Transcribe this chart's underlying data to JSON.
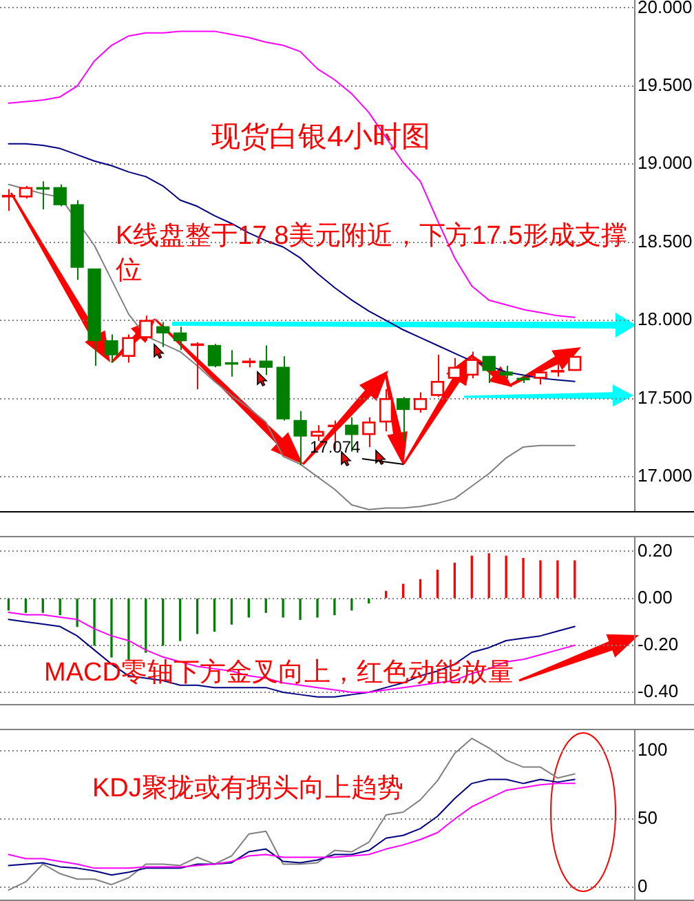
{
  "chart_data": [
    {
      "type": "candlestick",
      "title": "现货白银4小时图",
      "categories": [
        null,
        null,
        null,
        null,
        null,
        null,
        null,
        null,
        null,
        null,
        null,
        null,
        null,
        null,
        null,
        null,
        null,
        null,
        null,
        null,
        null,
        null,
        null,
        null,
        null,
        null,
        null,
        null,
        null,
        null,
        null,
        null,
        null,
        null,
        null,
        null,
        null
      ],
      "ohlc": [
        [
          18.79,
          18.84,
          18.7,
          18.8
        ],
        [
          18.79,
          18.86,
          18.78,
          18.85
        ],
        [
          18.85,
          18.89,
          18.71,
          18.84
        ],
        [
          18.85,
          18.87,
          18.73,
          18.74
        ],
        [
          18.74,
          18.77,
          18.26,
          18.34
        ],
        [
          18.33,
          18.33,
          17.71,
          17.87
        ],
        [
          17.87,
          17.91,
          17.73,
          17.78
        ],
        [
          17.77,
          17.91,
          17.73,
          17.89
        ],
        [
          17.89,
          18.03,
          17.87,
          18.0
        ],
        [
          17.96,
          17.99,
          17.83,
          17.92
        ],
        [
          17.92,
          17.96,
          17.81,
          17.87
        ],
        [
          17.84,
          17.86,
          17.56,
          17.85
        ],
        [
          17.84,
          17.85,
          17.7,
          17.71
        ],
        [
          17.73,
          17.81,
          17.64,
          17.72
        ],
        [
          17.73,
          17.76,
          17.7,
          17.74
        ],
        [
          17.74,
          17.84,
          17.65,
          17.7
        ],
        [
          17.7,
          17.77,
          17.36,
          17.37
        ],
        [
          17.36,
          17.42,
          17.074,
          17.26
        ],
        [
          17.26,
          17.33,
          17.23,
          17.29
        ],
        [
          17.32,
          17.36,
          17.17,
          17.33
        ],
        [
          17.33,
          17.38,
          17.16,
          17.27
        ],
        [
          17.27,
          17.38,
          17.19,
          17.35
        ],
        [
          17.35,
          17.56,
          17.29,
          17.5
        ],
        [
          17.5,
          17.51,
          17.23,
          17.43
        ],
        [
          17.43,
          17.54,
          17.41,
          17.5
        ],
        [
          17.52,
          17.78,
          17.51,
          17.61
        ],
        [
          17.63,
          17.76,
          17.57,
          17.7
        ],
        [
          17.65,
          17.8,
          17.63,
          17.75
        ],
        [
          17.77,
          17.77,
          17.6,
          17.68
        ],
        [
          17.67,
          17.71,
          17.63,
          17.65
        ],
        [
          17.63,
          17.65,
          17.6,
          17.62
        ],
        [
          17.63,
          17.69,
          17.59,
          17.67
        ],
        [
          17.67,
          17.72,
          17.64,
          17.68
        ],
        [
          17.68,
          17.77,
          17.68,
          17.77
        ],
        null,
        null,
        null
      ],
      "colors": [
        "#ff0000",
        "#ff0000",
        "#008000",
        "#008000",
        "#008000",
        "#008000",
        "#008000",
        "#ff0000",
        "#ff0000",
        "#008000",
        "#008000",
        "#ff0000",
        "#008000",
        "#008000",
        "#ff0000",
        "#008000",
        "#008000",
        "#008000",
        "#ff0000",
        "#ff0000",
        "#008000",
        "#ff0000",
        "#ff0000",
        "#008000",
        "#ff0000",
        "#ff0000",
        "#ff0000",
        "#ff0000",
        "#008000",
        "#008000",
        "#008000",
        "#ff0000",
        "#ff0000",
        "#ff0000",
        null,
        null,
        null
      ],
      "series": [
        {
          "type": "line",
          "color": "#ff00ff",
          "values": [
            19.39,
            19.4,
            19.41,
            19.43,
            19.5,
            19.66,
            19.76,
            19.82,
            19.84,
            19.84,
            19.85,
            19.85,
            19.85,
            19.83,
            19.81,
            19.78,
            19.76,
            19.72,
            19.61,
            19.54,
            19.45,
            19.33,
            19.17,
            19.01,
            18.89,
            18.64,
            18.4,
            18.22,
            18.13,
            18.1,
            18.07,
            18.05,
            18.03,
            18.02,
            null,
            null,
            null
          ]
        },
        {
          "type": "line",
          "color": "#000080",
          "values": [
            19.13,
            19.13,
            19.12,
            19.1,
            19.06,
            19.02,
            18.99,
            18.95,
            18.92,
            18.86,
            18.77,
            18.73,
            18.67,
            18.62,
            18.56,
            18.51,
            18.47,
            18.4,
            18.3,
            18.21,
            18.13,
            18.06,
            18.0,
            17.94,
            17.89,
            17.84,
            17.79,
            17.74,
            17.71,
            17.67,
            17.65,
            17.63,
            17.62,
            17.61,
            null,
            null,
            null
          ]
        },
        {
          "type": "line",
          "color": "#808080",
          "values": [
            18.87,
            18.84,
            18.81,
            18.79,
            null,
            18.48,
            18.26,
            18.04,
            17.9,
            17.85,
            17.8,
            17.71,
            17.61,
            17.52,
            17.44,
            17.35,
            17.13,
            17.08,
            17.0,
            16.92,
            16.82,
            16.79,
            16.8,
            16.8,
            16.81,
            16.83,
            16.86,
            16.94,
            17.02,
            17.12,
            17.19,
            17.2,
            17.2,
            17.2,
            null,
            null,
            null
          ]
        }
      ],
      "ylim": [
        16.78,
        20.05
      ],
      "yticks": [
        {
          "value": 17,
          "label": "17.000"
        },
        {
          "value": 17.5,
          "label": "17.500"
        },
        {
          "value": 18,
          "label": "18.000"
        },
        {
          "value": 18.5,
          "label": "18.500"
        },
        {
          "value": 19,
          "label": "19.000"
        },
        {
          "value": 19.5,
          "label": "19.500"
        },
        {
          "value": 20,
          "label": "20.000"
        }
      ],
      "grid": "y",
      "tick_labels": "y",
      "annotations": [
        "K线盘整于17.8美元附近，下方17.5形成支撑位",
        "17.074"
      ]
    },
    {
      "type": "bar",
      "categories": [
        null,
        null,
        null,
        null,
        null,
        null,
        null,
        null,
        null,
        null,
        null,
        null,
        null,
        null,
        null,
        null,
        null,
        null,
        null,
        null,
        null,
        null,
        null,
        null,
        null,
        null,
        null,
        null,
        null,
        null,
        null,
        null,
        null,
        null,
        null,
        null,
        null
      ],
      "series": [
        {
          "type": "bar",
          "colors": [
            "#008000",
            "#008000",
            "#008000",
            "#008000",
            "#008000",
            "#008000",
            "#008000",
            "#008000",
            "#008000",
            "#008000",
            "#008000",
            "#008000",
            "#008000",
            "#008000",
            "#008000",
            "#008000",
            "#008000",
            "#008000",
            "#008000",
            "#008000",
            "#008000",
            "#008000",
            "#ff0000",
            "#ff0000",
            "#ff0000",
            "#ff0000",
            "#ff0000",
            "#ff0000",
            "#ff0000",
            "#ff0000",
            "#ff0000",
            "#ff0000",
            "#ff0000",
            "#ff0000",
            null,
            null,
            null
          ],
          "values": [
            -0.05,
            -0.06,
            -0.06,
            -0.07,
            -0.12,
            -0.2,
            -0.25,
            -0.26,
            -0.23,
            -0.2,
            -0.18,
            -0.15,
            -0.14,
            -0.11,
            -0.08,
            -0.06,
            -0.08,
            -0.09,
            -0.08,
            -0.07,
            -0.05,
            -0.02,
            0.03,
            0.06,
            0.08,
            0.12,
            0.15,
            0.18,
            0.19,
            0.18,
            0.17,
            0.16,
            0.16,
            0.16,
            null,
            null,
            null
          ]
        },
        {
          "type": "line",
          "color": "#000080",
          "values": [
            -0.09,
            -0.1,
            -0.11,
            -0.12,
            -0.16,
            -0.22,
            -0.28,
            -0.33,
            -0.34,
            -0.35,
            -0.37,
            -0.37,
            -0.38,
            -0.38,
            -0.38,
            -0.38,
            -0.4,
            -0.41,
            -0.42,
            -0.42,
            -0.41,
            -0.4,
            -0.38,
            -0.36,
            -0.33,
            -0.31,
            -0.28,
            -0.23,
            -0.21,
            -0.18,
            -0.17,
            -0.16,
            -0.14,
            -0.12,
            null,
            null,
            null
          ]
        },
        {
          "type": "line",
          "color": "#ff00ff",
          "values": [
            -0.06,
            -0.07,
            -0.07,
            -0.08,
            -0.09,
            -0.13,
            -0.16,
            -0.18,
            -0.22,
            -0.25,
            -0.27,
            -0.29,
            -0.3,
            -0.31,
            -0.33,
            -0.34,
            -0.36,
            -0.37,
            -0.38,
            -0.39,
            -0.4,
            -0.4,
            -0.39,
            -0.38,
            -0.37,
            -0.36,
            -0.35,
            -0.32,
            -0.3,
            -0.27,
            -0.26,
            -0.24,
            -0.22,
            -0.2,
            null,
            null,
            null
          ]
        }
      ],
      "ylim": [
        -0.45,
        0.26
      ],
      "yticks": [
        {
          "value": -0.4,
          "label": "-0.40"
        },
        {
          "value": -0.2,
          "label": "-0.20"
        },
        {
          "value": 0,
          "label": "0.00"
        },
        {
          "value": 0.2,
          "label": "0.20"
        }
      ],
      "grid": "y",
      "tick_labels": "y",
      "annotations": [
        "MACD零轴下方金叉向上，红色动能放量"
      ]
    },
    {
      "type": "line",
      "categories": [
        null,
        null,
        null,
        null,
        null,
        null,
        null,
        null,
        null,
        null,
        null,
        null,
        null,
        null,
        null,
        null,
        null,
        null,
        null,
        null,
        null,
        null,
        null,
        null,
        null,
        null,
        null,
        null,
        null,
        null,
        null,
        null,
        null,
        null,
        null,
        null,
        null
      ],
      "series": [
        {
          "type": "line",
          "color": "#808080",
          "values": [
            -2,
            4,
            17,
            10,
            6,
            6,
            2,
            7,
            17,
            17,
            16,
            22,
            17,
            23,
            39,
            41,
            17,
            17,
            18,
            27,
            26,
            33,
            53,
            55,
            64,
            78,
            98,
            109,
            102,
            93,
            88,
            88,
            80,
            83,
            null,
            null,
            null
          ]
        },
        {
          "type": "line",
          "color": "#000080",
          "values": [
            16,
            17,
            18,
            15,
            14,
            12,
            9,
            11,
            14,
            14,
            14,
            17,
            17,
            18,
            26,
            28,
            19,
            18,
            20,
            24,
            24,
            27,
            36,
            38,
            43,
            52,
            65,
            76,
            79,
            79,
            76,
            79,
            77,
            79,
            null,
            null,
            null
          ]
        },
        {
          "type": "line",
          "color": "#ff00ff",
          "values": [
            24,
            21,
            21,
            19,
            17,
            14,
            14,
            14,
            15,
            15,
            15,
            16,
            17,
            19,
            23,
            24,
            22,
            22,
            22,
            22,
            23,
            24,
            28,
            31,
            35,
            40,
            50,
            59,
            65,
            71,
            73,
            75,
            76,
            76,
            null,
            null,
            null
          ]
        }
      ],
      "ylim": [
        -9,
        115
      ],
      "yticks": [
        0,
        50,
        100
      ],
      "grid": "y",
      "tick_labels": "y",
      "annotations": [
        "KDJ聚拢或有拐头向上趋势"
      ]
    }
  ]
}
